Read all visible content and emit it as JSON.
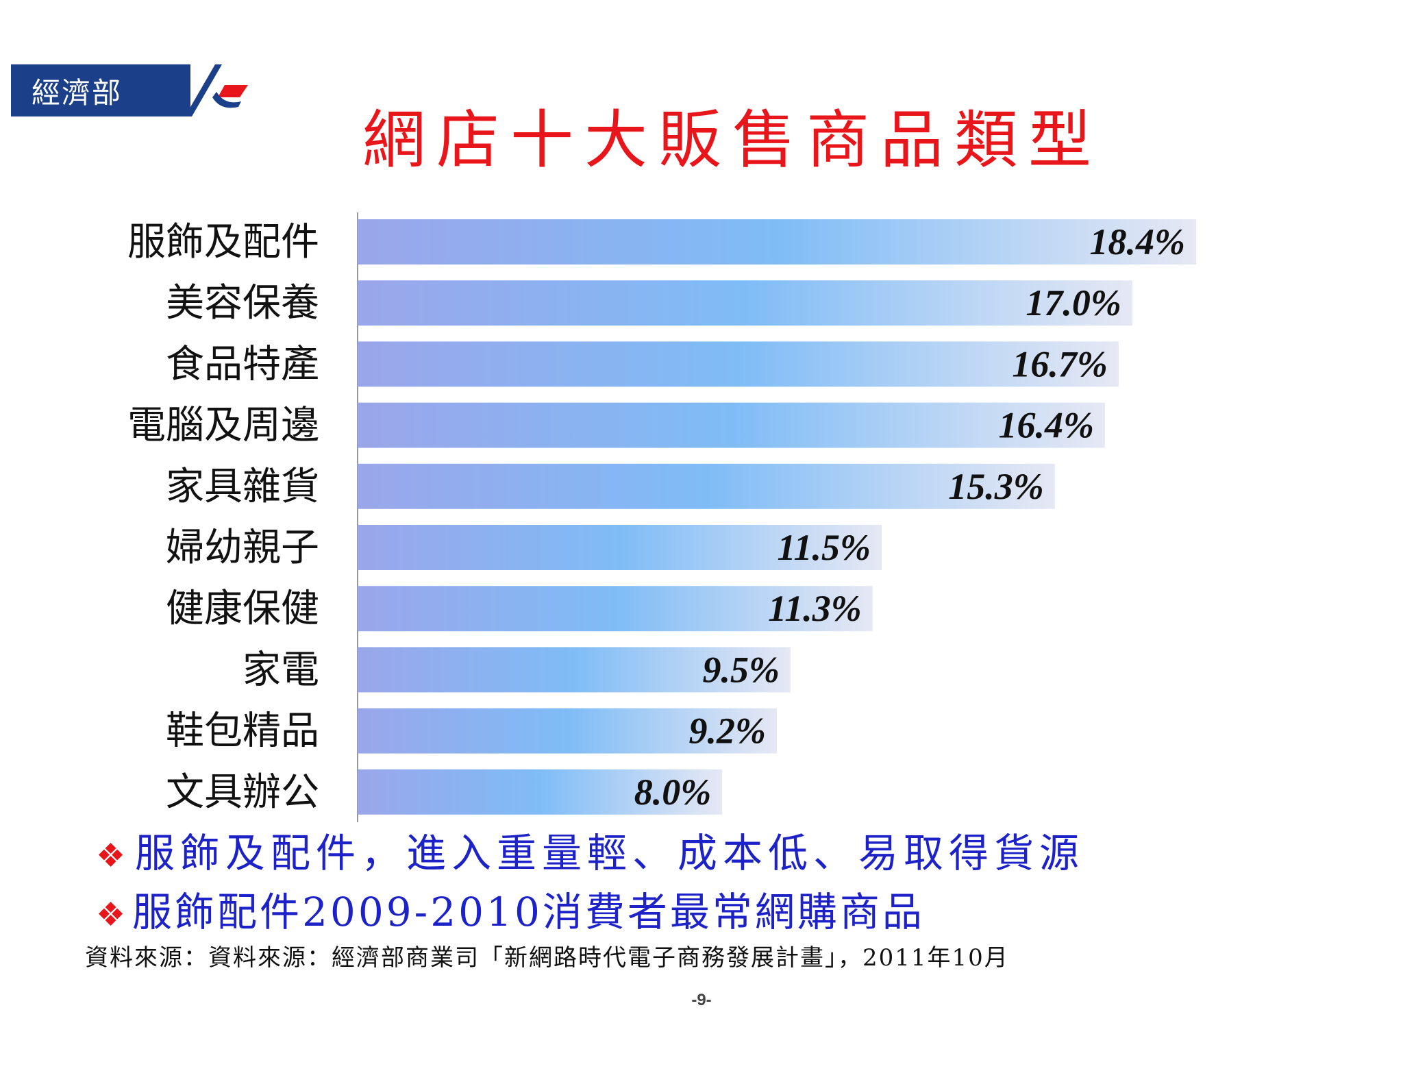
{
  "header": {
    "logo_text": "經濟部"
  },
  "title": "網店十大販售商品類型",
  "chart_data": {
    "type": "bar",
    "orientation": "horizontal",
    "categories": [
      "服飾及配件",
      "美容保養",
      "食品特產",
      "電腦及周邊",
      "家具雜貨",
      "婦幼親子",
      "健康保健",
      "家電",
      "鞋包精品",
      "文具辦公"
    ],
    "values": [
      18.4,
      17.0,
      16.7,
      16.4,
      15.3,
      11.5,
      11.3,
      9.5,
      9.2,
      8.0
    ],
    "labels": [
      "18.4%",
      "17.0%",
      "16.7%",
      "16.4%",
      "15.3%",
      "11.5%",
      "11.3%",
      "9.5%",
      "9.2%",
      "8.0%"
    ],
    "xlim": [
      0,
      20
    ],
    "grid": false,
    "bar_colors": {
      "start": "#9aa6ea",
      "mid": "#7fbcf6",
      "end": "#e6e8f4"
    }
  },
  "bullets": [
    {
      "icon": "red-diamond-bullet-icon",
      "text": "服飾及配件，進入重量輕、成本低、易取得貨源"
    },
    {
      "icon": "red-diamond-bullet-icon",
      "text": "服飾配件2009-2010消費者最常網購商品"
    }
  ],
  "source": "資料來源：資料來源：經濟部商業司「新網路時代電子商務發展計畫」，2011年10月",
  "page_number": "-9-",
  "colors": {
    "title": "#e8161a",
    "bullet_text": "#1c22c8",
    "bullet_mark": "#e8161a",
    "logo_bg": "#1c3f8a"
  }
}
